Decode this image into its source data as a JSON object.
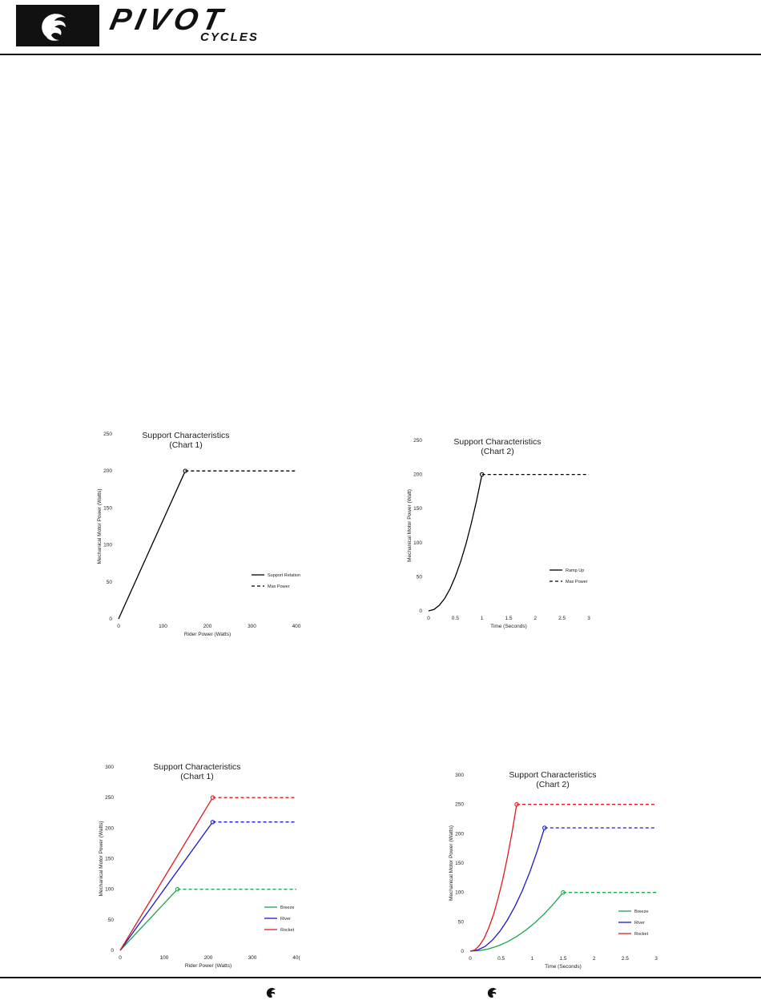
{
  "brand": {
    "wordmark": "PIVOT",
    "sub": "CYCLES",
    "colors": {
      "ink": "#111111"
    }
  },
  "footer": {
    "icons": [
      "pivot-bird-icon",
      "pivot-bird-icon"
    ]
  },
  "chart_data": [
    {
      "type": "line",
      "title": "Support Characteristics",
      "subtitle": "(Chart 1)",
      "xlabel": "Rider Power (Watts)",
      "ylabel": "Mechanical Motor Power (Watts)",
      "xlim": [
        0,
        400
      ],
      "ylim": [
        0,
        250
      ],
      "xticks": [
        "0",
        "100",
        "200",
        "300",
        "400"
      ],
      "yticks": [
        "0",
        "50",
        "100",
        "150",
        "200",
        "250"
      ],
      "legend_position": "right",
      "series": [
        {
          "name": "Support Relation",
          "color": "#000000",
          "style": "solid",
          "x": [
            0,
            150
          ],
          "y": [
            0,
            200
          ],
          "marker_end": true
        },
        {
          "name": "Max Power",
          "color": "#000000",
          "style": "dashed",
          "x": [
            150,
            400
          ],
          "y": [
            200,
            200
          ]
        }
      ]
    },
    {
      "type": "line",
      "title": "Support Characteristics",
      "subtitle": "(Chart 2)",
      "xlabel": "Time (Seconds)",
      "ylabel": "Mechanical Motor Power (Watt)",
      "xlim": [
        0,
        3
      ],
      "ylim": [
        0,
        250
      ],
      "xticks": [
        "0",
        "0.5",
        "1",
        "1.5",
        "2",
        "2.5",
        "3"
      ],
      "yticks": [
        "0",
        "50",
        "100",
        "150",
        "200",
        "250"
      ],
      "legend_position": "right",
      "series": [
        {
          "name": "Ramp Up",
          "color": "#000000",
          "style": "solid",
          "x": [
            0,
            0.1,
            0.2,
            0.3,
            0.4,
            0.5,
            0.6,
            0.7,
            0.8,
            0.9,
            1.0
          ],
          "y": [
            0,
            2,
            8,
            18,
            32,
            50,
            72,
            98,
            128,
            162,
            200
          ],
          "marker_end": true
        },
        {
          "name": "Max Power",
          "color": "#000000",
          "style": "dashed",
          "x": [
            1,
            3
          ],
          "y": [
            200,
            200
          ]
        }
      ]
    },
    {
      "type": "line",
      "title": "Support Characteristics",
      "subtitle": "(Chart 1)",
      "xlabel": "Rider Power (Watts)",
      "ylabel": "Mechanical Motor Power (Watts)",
      "xlim": [
        0,
        400
      ],
      "ylim": [
        0,
        300
      ],
      "xticks": [
        "0",
        "100",
        "200",
        "300",
        "40("
      ],
      "yticks": [
        "0",
        "50",
        "100",
        "150",
        "200",
        "250",
        "300"
      ],
      "legend_position": "right",
      "series": [
        {
          "name": "Breeze",
          "color": "#1aa64b",
          "style": "solid",
          "x": [
            0,
            130
          ],
          "y": [
            0,
            100
          ],
          "marker_end": true
        },
        {
          "name": "River",
          "color": "#1a1acc",
          "style": "solid",
          "x": [
            0,
            210
          ],
          "y": [
            0,
            210
          ],
          "marker_end": true
        },
        {
          "name": "Rocket",
          "color": "#e0191e",
          "style": "solid",
          "x": [
            0,
            210
          ],
          "y": [
            0,
            250
          ],
          "marker_end": true
        },
        {
          "name": "",
          "color": "#1aa64b",
          "style": "dashed",
          "x": [
            130,
            400
          ],
          "y": [
            100,
            100
          ]
        },
        {
          "name": "",
          "color": "#1a1acc",
          "style": "dashed",
          "x": [
            210,
            400
          ],
          "y": [
            210,
            210
          ]
        },
        {
          "name": "",
          "color": "#e0191e",
          "style": "dashed",
          "x": [
            210,
            400
          ],
          "y": [
            250,
            250
          ]
        }
      ]
    },
    {
      "type": "line",
      "title": "Support Characteristics",
      "subtitle": "(Chart 2)",
      "xlabel": "Time (Seconds)",
      "ylabel": "Mechanical Motor Power (Watts)",
      "xlim": [
        0,
        3
      ],
      "ylim": [
        0,
        300
      ],
      "xticks": [
        "0",
        "0.5",
        "1",
        "1.5",
        "2",
        "2.5",
        "3"
      ],
      "yticks": [
        "0",
        "50",
        "100",
        "150",
        "200",
        "250",
        "300"
      ],
      "legend_position": "right",
      "series": [
        {
          "name": "Breeze",
          "color": "#1aa64b",
          "style": "solid",
          "x": [
            0,
            0.15,
            0.3,
            0.45,
            0.6,
            0.75,
            0.9,
            1.05,
            1.2,
            1.35,
            1.5
          ],
          "y": [
            0,
            1,
            4,
            9,
            16,
            25,
            36,
            49,
            64,
            81,
            100
          ],
          "marker_end": true
        },
        {
          "name": "River",
          "color": "#1a1acc",
          "style": "solid",
          "x": [
            0,
            0.12,
            0.24,
            0.36,
            0.48,
            0.6,
            0.72,
            0.84,
            0.96,
            1.08,
            1.2
          ],
          "y": [
            0,
            2,
            8,
            19,
            34,
            53,
            76,
            103,
            134,
            170,
            210
          ],
          "marker_end": true
        },
        {
          "name": "Rocket",
          "color": "#e0191e",
          "style": "solid",
          "x": [
            0,
            0.075,
            0.15,
            0.225,
            0.3,
            0.375,
            0.45,
            0.525,
            0.6,
            0.675,
            0.75
          ],
          "y": [
            0,
            2,
            10,
            22,
            40,
            62,
            90,
            122,
            160,
            202,
            250
          ],
          "marker_end": true
        },
        {
          "name": "",
          "color": "#1aa64b",
          "style": "dashed",
          "x": [
            1.5,
            3
          ],
          "y": [
            100,
            100
          ]
        },
        {
          "name": "",
          "color": "#1a1acc",
          "style": "dashed",
          "x": [
            1.2,
            3
          ],
          "y": [
            210,
            210
          ]
        },
        {
          "name": "",
          "color": "#e0191e",
          "style": "dashed",
          "x": [
            0.75,
            3
          ],
          "y": [
            250,
            250
          ]
        }
      ]
    }
  ]
}
